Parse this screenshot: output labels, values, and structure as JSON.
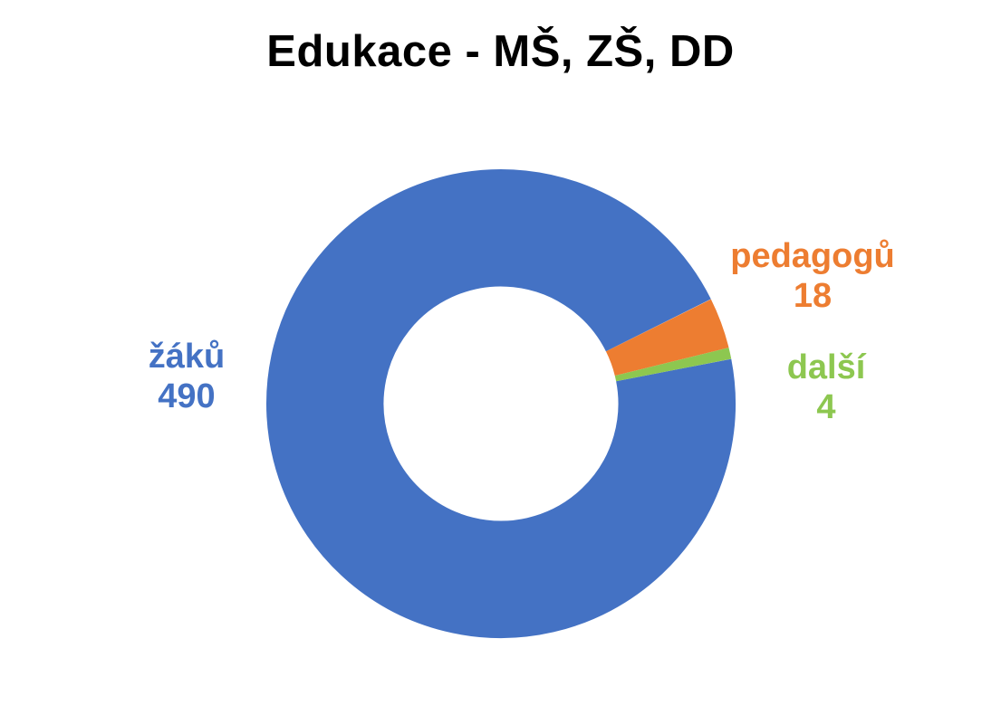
{
  "title": "Edukace - MŠ, ZŠ, DD",
  "chart_data": {
    "type": "pie",
    "subtype": "donut",
    "title": "Edukace - MŠ, ZŠ, DD",
    "title_color": "#000000",
    "background": "#FFFFFF",
    "legend_position": "none",
    "hole_ratio": 0.5,
    "start_angle_deg": 79,
    "clockwise": true,
    "total": 512,
    "segments": [
      {
        "label": "žáků",
        "value": 490,
        "color": "#4472C4"
      },
      {
        "label": "pedagogů",
        "value": 18,
        "color": "#ED7D31"
      },
      {
        "label": "další",
        "value": 4,
        "color": "#8DC750"
      }
    ]
  }
}
